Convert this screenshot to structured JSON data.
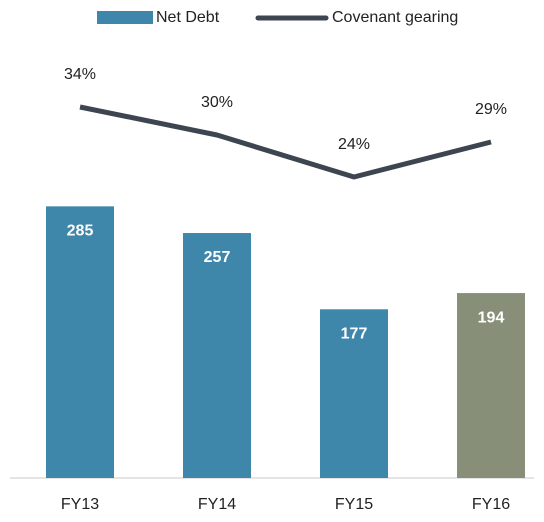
{
  "chart_data": {
    "type": "bar",
    "categories": [
      "FY13",
      "FY14",
      "FY15",
      "FY16"
    ],
    "series": [
      {
        "name": "Net Debt",
        "type": "bar",
        "color": "#3f86ab",
        "colors": [
          "#3f86ab",
          "#3f86ab",
          "#3f86ab",
          "#878f78"
        ],
        "values": [
          285,
          257,
          177,
          194
        ]
      },
      {
        "name": "Covenant gearing",
        "type": "line",
        "axis": "y2",
        "color": "#3d4650",
        "values": [
          34,
          30,
          24,
          29
        ],
        "value_labels": [
          "34%",
          "30%",
          "24%",
          "29%"
        ]
      }
    ],
    "ylim": [
      0,
      470
    ],
    "y2lim": [
      -19,
      45
    ],
    "legend": "top"
  }
}
